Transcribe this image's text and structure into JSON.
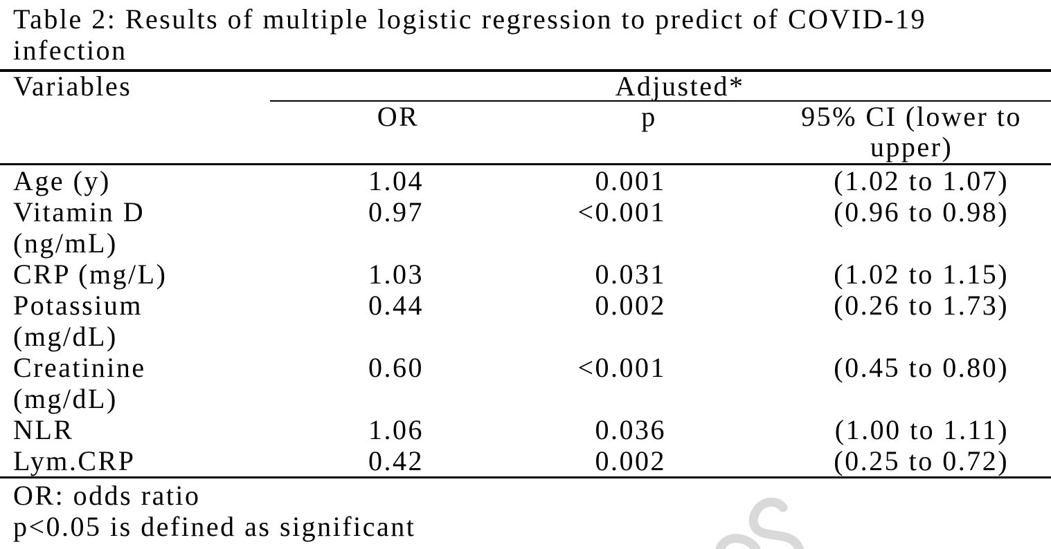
{
  "page": {
    "title": "Table 2: Results of multiple logistic regression to predict of COVID-19 infection"
  },
  "table": {
    "header": {
      "variables_label": "Variables",
      "adjusted_label": "Adjusted*",
      "sub_columns": [
        "OR",
        "p",
        "95% CI (lower to upper)"
      ]
    },
    "rows": [
      {
        "variable": "Age (y)",
        "or": "1.04",
        "p": "0.001",
        "ci": "(1.02 to 1.07)"
      },
      {
        "variable": "Vitamin D\n(ng/mL)",
        "or": "0.97",
        "p": "<0.001",
        "ci": "(0.96 to 0.98)"
      },
      {
        "variable": "CRP (mg/L)",
        "or": "1.03",
        "p": "0.031",
        "ci": "(1.02 to 1.15)"
      },
      {
        "variable": "Potassium\n(mg/dL)",
        "or": "0.44",
        "p": "0.002",
        "ci": "(0.26 to 1.73)"
      },
      {
        "variable": "Creatinine\n(mg/dL)",
        "or": "0.60",
        "p": "<0.001",
        "ci": "(0.45 to 0.80)"
      },
      {
        "variable": "NLR",
        "or": "1.06",
        "p": "0.036",
        "ci": "(1.00 to 1.11)"
      },
      {
        "variable": "Lym.CRP",
        "or": "0.42",
        "p": "0.002",
        "ci": "(0.25 to 0.72)"
      }
    ],
    "footnotes": [
      "OR: odds ratio",
      "p<0.05 is defined as significant"
    ]
  },
  "watermark": {
    "visible_text": "S",
    "color": "#d9d9d9"
  }
}
